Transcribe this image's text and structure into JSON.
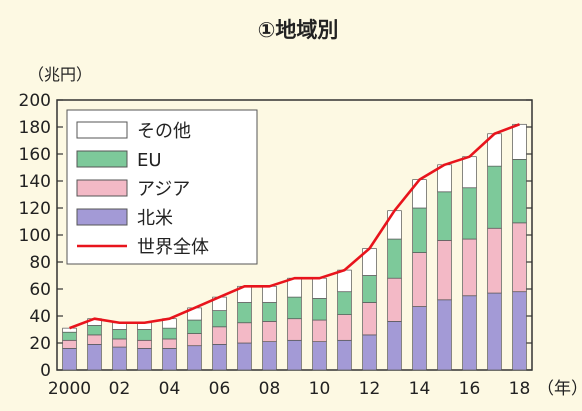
{
  "chart_data": {
    "type": "bar",
    "title": "①地域別",
    "ylabel": "（兆円）",
    "xunit": "（年）",
    "ylim": [
      0,
      200
    ],
    "yticks": [
      0,
      20,
      40,
      60,
      80,
      100,
      120,
      140,
      160,
      180,
      200
    ],
    "x": [
      2000,
      2001,
      2002,
      2003,
      2004,
      2005,
      2006,
      2007,
      2008,
      2009,
      2010,
      2011,
      2012,
      2013,
      2014,
      2015,
      2016,
      2017,
      2018
    ],
    "xtick_labels": [
      "2000",
      "",
      "02",
      "",
      "04",
      "",
      "06",
      "",
      "08",
      "",
      "10",
      "",
      "12",
      "",
      "14",
      "",
      "16",
      "",
      "18"
    ],
    "legend_position": "top-left",
    "series": [
      {
        "name": "北米",
        "kind": "bar",
        "color": "#a39ad6",
        "values": [
          16,
          19,
          17,
          16,
          16,
          18,
          19,
          20,
          21,
          22,
          21,
          22,
          26,
          36,
          47,
          52,
          55,
          57,
          58
        ]
      },
      {
        "name": "アジア",
        "kind": "bar",
        "color": "#f3b9c6",
        "values": [
          6,
          7,
          6,
          6,
          7,
          9,
          13,
          15,
          15,
          16,
          16,
          19,
          24,
          32,
          40,
          44,
          42,
          48,
          51
        ]
      },
      {
        "name": "EU",
        "kind": "bar",
        "color": "#7dc99a",
        "values": [
          6,
          7,
          7,
          8,
          8,
          10,
          12,
          15,
          14,
          16,
          16,
          17,
          20,
          29,
          33,
          36,
          38,
          46,
          47
        ]
      },
      {
        "name": "その他",
        "kind": "bar",
        "color": "#ffffff",
        "values": [
          3,
          5,
          5,
          5,
          7,
          9,
          10,
          12,
          12,
          14,
          15,
          16,
          20,
          21,
          21,
          20,
          23,
          24,
          26
        ]
      },
      {
        "name": "世界全体",
        "kind": "line",
        "color": "#e8141c",
        "values": [
          31,
          38,
          35,
          35,
          38,
          46,
          54,
          62,
          62,
          68,
          68,
          74,
          90,
          118,
          141,
          152,
          158,
          175,
          182
        ]
      }
    ],
    "legend_order": [
      "その他",
      "EU",
      "アジア",
      "北米",
      "世界全体"
    ]
  }
}
